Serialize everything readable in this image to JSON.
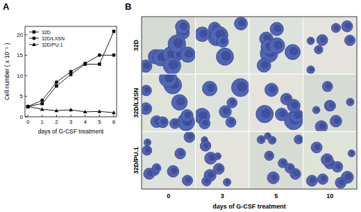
{
  "panels": [
    "A",
    "B"
  ],
  "chart_data": {
    "type": "line",
    "x": [
      0,
      1,
      2,
      3,
      4,
      5,
      6
    ],
    "xlim": [
      -0.2,
      6.2
    ],
    "xticks": [
      0,
      1,
      2,
      3,
      4,
      5,
      6
    ],
    "ylim": [
      0,
      22
    ],
    "yticks": [
      0,
      5,
      10,
      15,
      20
    ],
    "xlabel": "days of G-CSF treatment",
    "ylabel": "Cell number ( x 10⁻⁵ )",
    "legend": "upper left",
    "series": [
      {
        "name": "32D",
        "color": "#000000",
        "marker": "square",
        "values": [
          2.5,
          3.2,
          7.5,
          10.3,
          12.8,
          12.8,
          20.8
        ]
      },
      {
        "name": "32D/LXSN",
        "color": "#000000",
        "marker": "circle",
        "values": [
          2.5,
          4.0,
          8.4,
          11.0,
          13.0,
          15.0,
          15.0
        ]
      },
      {
        "name": "32D/PU.1",
        "color": "#000000",
        "marker": "triangle",
        "values": [
          2.5,
          1.8,
          1.5,
          1.7,
          1.2,
          1.3,
          1.0
        ]
      }
    ]
  },
  "micrographs": {
    "rows": [
      "32D",
      "32D/LXSN",
      "32D/PU.1"
    ],
    "columns": [
      "0",
      "3",
      "5",
      "10"
    ],
    "xlabel": "days of G-CSF treatment"
  }
}
